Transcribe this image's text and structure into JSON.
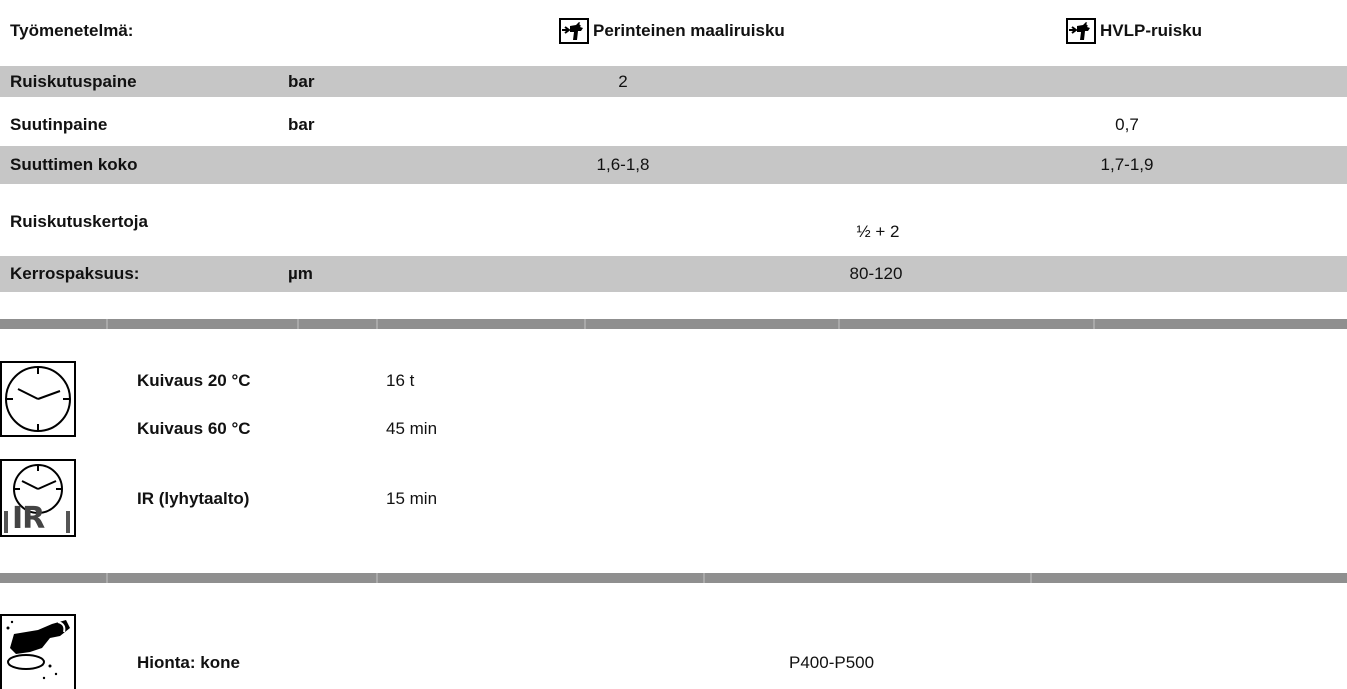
{
  "header": {
    "label": "Työmenetelmä:",
    "method_conventional": "Perinteinen maaliruisku",
    "method_hvlp": "HVLP-ruisku",
    "method_conventional_icon": "spray-gun-icon",
    "method_hvlp_icon": "spray-gun-icon"
  },
  "spray_table": {
    "rows": [
      {
        "label": "Ruiskutuspaine",
        "unit": "bar",
        "conventional": "2",
        "hvlp": ""
      },
      {
        "label": "Suutinpaine",
        "unit": "bar",
        "conventional": "",
        "hvlp": "0,7"
      },
      {
        "label": "Suuttimen koko",
        "unit": "",
        "conventional": "1,6-1,8",
        "hvlp": "1,7-1,9"
      },
      {
        "label": "Ruiskutuskertoja",
        "unit": "",
        "shared": "½ + 2"
      },
      {
        "label": "Kerrospaksuus:",
        "unit": "µm",
        "shared": "80-120"
      }
    ]
  },
  "drying": {
    "clock_icon": "clock-icon",
    "ir_icon": "ir-clock-icon",
    "items": [
      {
        "label": "Kuivaus 20 °C",
        "value": "16 t"
      },
      {
        "label": "Kuivaus 60 °C",
        "value": "45 min"
      },
      {
        "label": "IR (lyhytaalto)",
        "value": "15 min"
      }
    ],
    "ir_text": "IR"
  },
  "sanding": {
    "icon": "sanding-machine-icon",
    "label": "Hionta: kone",
    "value": "P400-P500"
  },
  "colors": {
    "row_grey": "#c6c6c6",
    "divider": "#8f8f8f"
  }
}
